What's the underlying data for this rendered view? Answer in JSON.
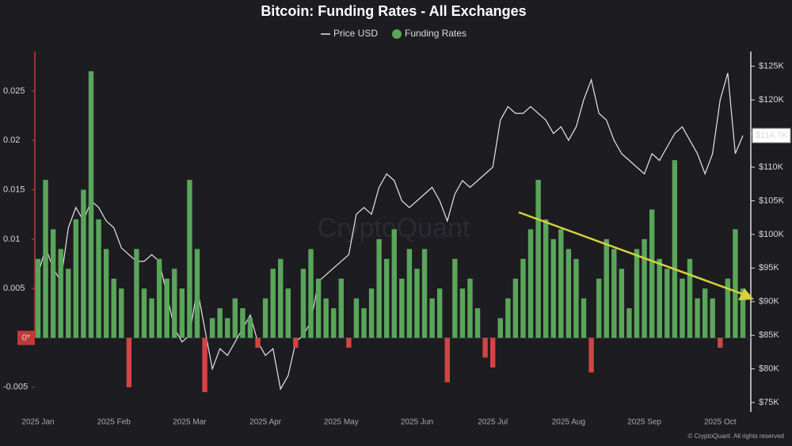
{
  "chart_data": {
    "type": "bar_line",
    "title": "Bitcoin: Funding Rates - All Exchanges",
    "watermark": "CryptoQuant",
    "source": "© CryptoQuant. All rights reserved",
    "categories": [
      "2025 Jan",
      null,
      null,
      null,
      null,
      null,
      null,
      null,
      null,
      null,
      "2025 Feb",
      null,
      null,
      null,
      null,
      null,
      null,
      null,
      null,
      null,
      "2025 Mar",
      null,
      null,
      null,
      null,
      null,
      null,
      null,
      null,
      null,
      "2025 Apr",
      null,
      null,
      null,
      null,
      null,
      null,
      null,
      null,
      null,
      "2025 May",
      null,
      null,
      null,
      null,
      null,
      null,
      null,
      null,
      null,
      "2025 Jun",
      null,
      null,
      null,
      null,
      null,
      null,
      null,
      null,
      null,
      "2025 Jul",
      null,
      null,
      null,
      null,
      null,
      null,
      null,
      null,
      null,
      "2025 Aug",
      null,
      null,
      null,
      null,
      null,
      null,
      null,
      null,
      null,
      "2025 Sep",
      null,
      null,
      null,
      null,
      null,
      null,
      null,
      null,
      null,
      "2025 Oct",
      null,
      null,
      null
    ],
    "series": [
      {
        "name": "Price USD",
        "color": "#e6e6e6",
        "axis": "y2",
        "values": [
          94000,
          98000,
          95000,
          93000,
          101000,
          104000,
          102000,
          105000,
          104000,
          102000,
          101000,
          98000,
          97000,
          96000,
          96000,
          97000,
          96000,
          91000,
          86000,
          84000,
          85000,
          92000,
          86000,
          80000,
          83000,
          82000,
          84000,
          86000,
          88000,
          84000,
          82000,
          83000,
          77000,
          79000,
          84000,
          85000,
          87000,
          93000,
          94000,
          95000,
          96000,
          97000,
          103000,
          104000,
          103000,
          107000,
          109000,
          108000,
          105000,
          104000,
          105000,
          106000,
          107000,
          105000,
          102000,
          106000,
          108000,
          107000,
          108000,
          109000,
          110000,
          117000,
          119000,
          118000,
          118000,
          119000,
          118000,
          117000,
          115000,
          116000,
          114000,
          116000,
          120000,
          123000,
          118000,
          117000,
          114000,
          112000,
          111000,
          110000,
          109000,
          112000,
          111000,
          113000,
          115000,
          116000,
          114000,
          112000,
          109000,
          112000,
          120000,
          124000,
          112000,
          114700
        ]
      },
      {
        "name": "Funding Rates",
        "color": "#5aa55a",
        "negative_color": "#d04545",
        "values": [
          0.008,
          0.016,
          0.011,
          0.009,
          0.007,
          0.012,
          0.015,
          0.027,
          0.012,
          0.009,
          0.006,
          0.005,
          -0.005,
          0.009,
          0.005,
          0.004,
          0.008,
          0.006,
          0.007,
          0.005,
          0.016,
          0.009,
          -0.0055,
          0.002,
          0.003,
          0.002,
          0.004,
          0.003,
          0.002,
          -0.001,
          0.004,
          0.007,
          0.008,
          0.005,
          -0.001,
          0.007,
          0.009,
          0.006,
          0.004,
          0.003,
          0.006,
          -0.001,
          0.004,
          0.003,
          0.005,
          0.01,
          0.008,
          0.011,
          0.006,
          0.009,
          0.007,
          0.009,
          0.004,
          0.005,
          -0.0045,
          0.008,
          0.005,
          0.006,
          0.003,
          -0.002,
          -0.003,
          0.002,
          0.004,
          0.006,
          0.008,
          0.011,
          0.016,
          0.012,
          0.01,
          0.011,
          0.009,
          0.008,
          0.004,
          -0.0035,
          0.006,
          0.01,
          0.009,
          0.007,
          0.003,
          0.009,
          0.01,
          0.013,
          0.008,
          0.007,
          0.018,
          0.006,
          0.008,
          0.004,
          0.005,
          0.004,
          -0.001,
          0.006,
          0.011,
          0.005
        ]
      }
    ],
    "ylim": [
      -0.0075,
      0.029
    ],
    "yticks": [
      {
        "value": 0,
        "label": "0*"
      },
      -0.005,
      0.005,
      0.01,
      0.015,
      0.02,
      0.025
    ],
    "y2lim": [
      73600,
      127200
    ],
    "y2ticks": [
      {
        "value": 75000,
        "label": "$75K"
      },
      {
        "value": 80000,
        "label": "$80K"
      },
      {
        "value": 85000,
        "label": "$85K"
      },
      {
        "value": 90000,
        "label": "$90K"
      },
      {
        "value": 95000,
        "label": "$95K"
      },
      {
        "value": 100000,
        "label": "$100K"
      },
      {
        "value": 105000,
        "label": "$105K"
      },
      {
        "value": 110000,
        "label": "$110K"
      },
      {
        "value": 115000,
        "label": "$115K"
      },
      {
        "value": 120000,
        "label": "$120K"
      },
      {
        "value": 125000,
        "label": "$125K"
      }
    ],
    "last_price": {
      "value": 114700,
      "label": "$114.7K"
    }
  }
}
